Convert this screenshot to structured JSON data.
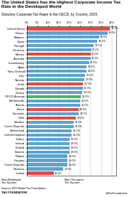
{
  "chart_data": {
    "type": "bar",
    "orientation": "horizontal",
    "title": "The United States has the Highest Corporate Income Tax Rate in the Developed World",
    "subtitle": "Statutory Corporate Tax Rates in the OECD, by Country, 2015",
    "categories": [
      "United States",
      "France",
      "Belgium",
      "Japan",
      "Portugal",
      "Germany",
      "Mexico",
      "Australia",
      "Luxembourg",
      "Spain",
      "New Zealand",
      "Italy",
      "Norway",
      "Israel",
      "Canada",
      "Greece",
      "OECD Average",
      "Netherlands",
      "Austria",
      "Korea",
      "Denmark",
      "Chile",
      "Sweden",
      "Czech Republic",
      "Switzerland",
      "United Kingdom",
      "Turkey",
      "Iceland",
      "Finland",
      "Estonia",
      "Poland",
      "Hungary",
      "Czech Republic",
      "Slovenia",
      "Ireland"
    ],
    "values": [
      39.1,
      38.0,
      34.0,
      33.1,
      31.5,
      30.2,
      30.0,
      30.0,
      29.2,
      28.0,
      28.0,
      27.5,
      27.0,
      26.5,
      26.3,
      26.0,
      25.5,
      25.0,
      25.0,
      24.2,
      24.5,
      23.0,
      22.0,
      22.0,
      21.1,
      21.0,
      20.0,
      20.0,
      20.0,
      20.0,
      19.0,
      19.0,
      19.0,
      17.0,
      12.5
    ],
    "value_labels": [
      "39.1%",
      "38.0%",
      "34.0%",
      "33.1%",
      "31.5%",
      "30.2%",
      "30.0%",
      "30.0%",
      "29.2%",
      "28.0%",
      "28.0%",
      "27.5%",
      "27.0%",
      "26.5%",
      "26.3%",
      "26.0%",
      "25.5%",
      "25.0%",
      "25.0%",
      "24.2%",
      "24.5%",
      "23.0%",
      "22.0%",
      "22.0%",
      "21.1%",
      "21.0%",
      "20.0%",
      "20.0%",
      "20.0%",
      "20.0%",
      "19.0%",
      "19.0%",
      "19.0%",
      "17.0%",
      "12.5%"
    ],
    "colors": [
      "#e8483e",
      "#5ba3d0",
      "#5ba3d0",
      "#5ba3d0",
      "#5ba3d0",
      "#5ba3d0",
      "#e8483e",
      "#5ba3d0",
      "#5ba3d0",
      "#5ba3d0",
      "#5ba3d0",
      "#5ba3d0",
      "#5ba3d0",
      "#e8483e",
      "#5ba3d0",
      "#5ba3d0",
      "#4db560",
      "#5ba3d0",
      "#5ba3d0",
      "#e8483e",
      "#5ba3d0",
      "#e8483e",
      "#5ba3d0",
      "#5ba3d0",
      "#5ba3d0",
      "#5ba3d0",
      "#5ba3d0",
      "#5ba3d0",
      "#5ba3d0",
      "#5ba3d0",
      "#5ba3d0",
      "#5ba3d0",
      "#5ba3d0",
      "#5ba3d0",
      "#e8483e"
    ],
    "data_labels": true,
    "xlim": [
      0,
      42
    ],
    "xticks": [
      {
        "value": 0,
        "label": "0%"
      },
      {
        "value": 5,
        "label": "5%"
      },
      {
        "value": 10,
        "label": "10%"
      },
      {
        "value": 15,
        "label": "15%"
      },
      {
        "value": 20,
        "label": "20%"
      },
      {
        "value": 25,
        "label": "25%"
      },
      {
        "value": 30,
        "label": "30%"
      },
      {
        "value": 35,
        "label": "35%"
      },
      {
        "value": 40,
        "label": "40%"
      }
    ],
    "grid": true,
    "annotations": [
      "Red=Worldwide\nTax System",
      "Blue=Territorial\nTax System",
      "Source: IRS World Tax Foundation",
      "TAX FOUNDATION",
      "@TaxFoundation"
    ]
  }
}
